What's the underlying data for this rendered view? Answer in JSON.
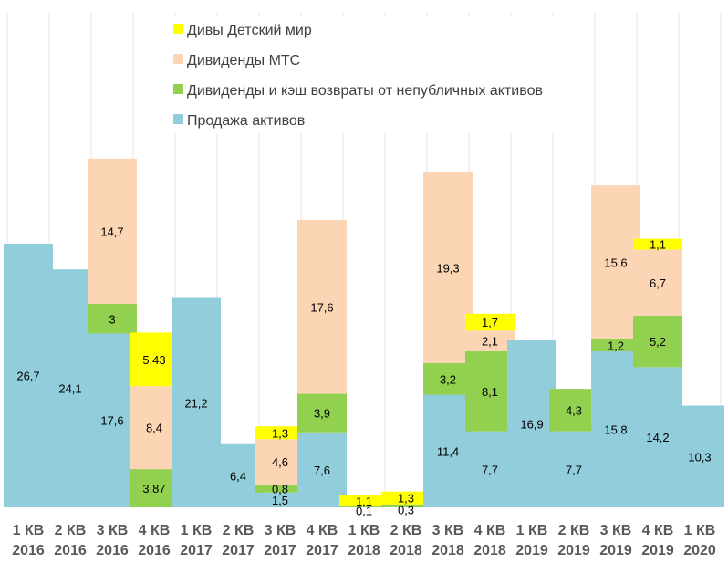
{
  "chart_data": {
    "type": "bar",
    "stacked": true,
    "title": "",
    "xlabel": "",
    "ylabel": "",
    "grid": true,
    "legend_position": "top-left",
    "categories": [
      [
        "1 КВ",
        "2016"
      ],
      [
        "2 КВ",
        "2016"
      ],
      [
        "3 КВ",
        "2016"
      ],
      [
        "4 КВ",
        "2016"
      ],
      [
        "1 КВ",
        "2017"
      ],
      [
        "2 КВ",
        "2017"
      ],
      [
        "3 КВ",
        "2017"
      ],
      [
        "4 КВ",
        "2017"
      ],
      [
        "1 КВ",
        "2018"
      ],
      [
        "2 КВ",
        "2018"
      ],
      [
        "3 КВ",
        "2018"
      ],
      [
        "4 КВ",
        "2018"
      ],
      [
        "1 КВ",
        "2019"
      ],
      [
        "2 КВ",
        "2019"
      ],
      [
        "3 КВ",
        "2019"
      ],
      [
        "4 КВ",
        "2019"
      ],
      [
        "1 КВ",
        "2020"
      ]
    ],
    "series": [
      {
        "name": "Продажа активов",
        "color": "#92CDDC",
        "values": [
          26.7,
          24.1,
          17.6,
          0,
          21.2,
          6.4,
          1.5,
          7.6,
          0,
          0,
          11.4,
          7.7,
          16.9,
          7.7,
          15.8,
          14.2,
          10.3
        ],
        "labels": [
          "26,7",
          "24,1",
          "17,6",
          "",
          "21,2",
          "6,4",
          "1,5",
          "7,6",
          "",
          "",
          "11,4",
          "7,7",
          "16,9",
          "7,7",
          "15,8",
          "14,2",
          "10,3"
        ]
      },
      {
        "name": "Дивиденды и кэш возвраты от непубличных активов",
        "color": "#92D050",
        "values": [
          0,
          0,
          3,
          3.87,
          0,
          0,
          0.8,
          3.9,
          0.1,
          0.3,
          3.2,
          8.1,
          0,
          4.3,
          1.2,
          5.2,
          0
        ],
        "labels": [
          "",
          "",
          "3",
          "3,87",
          "",
          "",
          "0,8",
          "3,9",
          "0,1",
          "0,3",
          "3,2",
          "8,1",
          "",
          "4,3",
          "1,2",
          "5,2",
          ""
        ]
      },
      {
        "name": "Дивиденды МТС",
        "color": "#FCD5B4",
        "values": [
          0,
          0,
          14.7,
          8.4,
          0,
          0,
          4.6,
          17.6,
          0,
          0,
          19.3,
          2.1,
          0,
          0,
          15.6,
          6.7,
          0
        ],
        "labels": [
          "",
          "",
          "14,7",
          "8,4",
          "",
          "",
          "4,6",
          "17,6",
          "",
          "",
          "19,3",
          "2,1",
          "",
          "",
          "15,6",
          "6,7",
          ""
        ]
      },
      {
        "name": "Дивы Детский мир",
        "color": "#FFFF00",
        "values": [
          0,
          0,
          0,
          5.43,
          0,
          0,
          1.3,
          0,
          1.1,
          1.3,
          0,
          1.7,
          0,
          0,
          0,
          1.1,
          0
        ],
        "labels": [
          "",
          "",
          "",
          "5,43",
          "",
          "",
          "1,3",
          "",
          "1,1",
          "1,3",
          "",
          "1,7",
          "",
          "",
          "",
          "1,1",
          ""
        ]
      }
    ],
    "legend_order": [
      3,
      2,
      1,
      0
    ]
  }
}
